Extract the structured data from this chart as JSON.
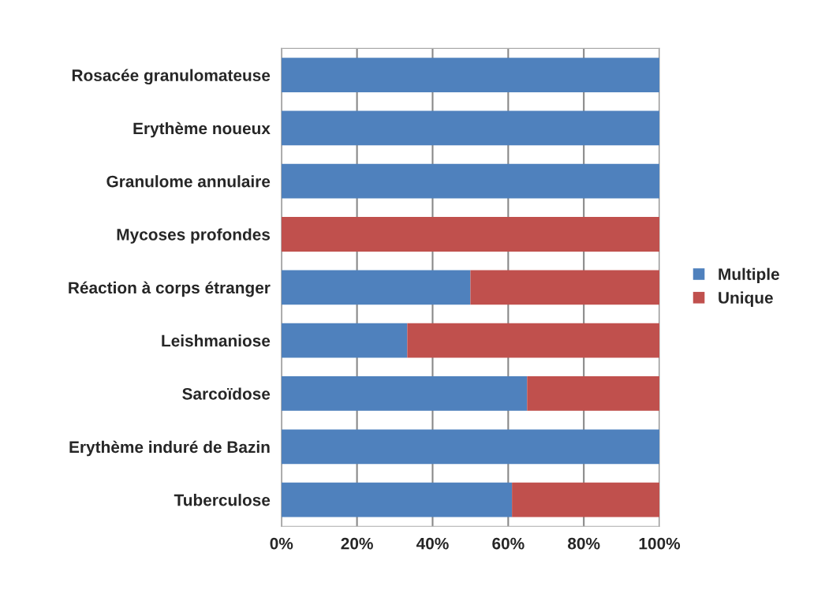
{
  "chart_data": {
    "type": "bar",
    "orientation": "horizontal",
    "stacked": true,
    "categories": [
      "Rosacée granulomateuse",
      "Erythème noueux",
      "Granulome annulaire",
      "Mycoses profondes",
      "Réaction à corps étranger",
      "Leishmaniose",
      "Sarcoïdose",
      "Erythème induré de Bazin",
      "Tuberculose"
    ],
    "series": [
      {
        "name": "Multiple",
        "color": "#4f81bd",
        "values": [
          100,
          100,
          100,
          0,
          50,
          33.3,
          65,
          100,
          61
        ]
      },
      {
        "name": "Unique",
        "color": "#c0504d",
        "values": [
          0,
          0,
          0,
          100,
          50,
          66.7,
          35,
          0,
          39
        ]
      }
    ],
    "xlim": [
      0,
      100
    ],
    "xticks": [
      {
        "value": 0,
        "label": "0%"
      },
      {
        "value": 20,
        "label": "20%"
      },
      {
        "value": 40,
        "label": "40%"
      },
      {
        "value": 60,
        "label": "60%"
      },
      {
        "value": 80,
        "label": "80%"
      },
      {
        "value": 100,
        "label": "100%"
      }
    ],
    "grid": "x",
    "legend": "right"
  }
}
